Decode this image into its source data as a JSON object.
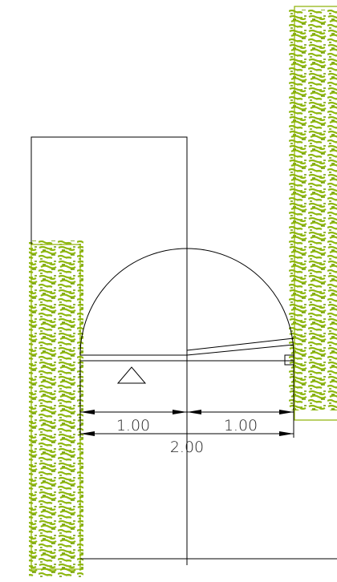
{
  "dimensions": {
    "left": "1.00",
    "right": "1.00",
    "total": "2.00"
  }
}
